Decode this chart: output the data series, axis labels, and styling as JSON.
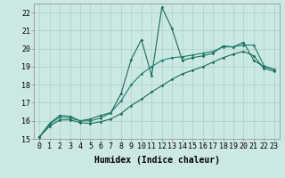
{
  "xlabel": "Humidex (Indice chaleur)",
  "xlim": [
    -0.5,
    23.5
  ],
  "ylim": [
    15,
    22.5
  ],
  "yticks": [
    15,
    16,
    17,
    18,
    19,
    20,
    21,
    22
  ],
  "xticks": [
    0,
    1,
    2,
    3,
    4,
    5,
    6,
    7,
    8,
    9,
    10,
    11,
    12,
    13,
    14,
    15,
    16,
    17,
    18,
    19,
    20,
    21,
    22,
    23
  ],
  "background_color": "#cce8e4",
  "grid_color": "#aacfca",
  "line_color_top": "#1a6b58",
  "line_color_mid": "#1a8068",
  "line_color_bot": "#1a6b58",
  "series_top": [
    15.1,
    15.85,
    16.3,
    16.25,
    16.0,
    16.1,
    16.3,
    16.45,
    17.5,
    19.4,
    20.5,
    18.5,
    22.3,
    21.1,
    19.35,
    19.5,
    19.6,
    19.75,
    20.15,
    20.1,
    20.35,
    19.35,
    19.0,
    18.85
  ],
  "series_mid": [
    15.1,
    15.8,
    16.2,
    16.15,
    16.0,
    16.0,
    16.15,
    16.45,
    17.1,
    18.0,
    18.6,
    19.0,
    19.35,
    19.5,
    19.55,
    19.65,
    19.75,
    19.85,
    20.1,
    20.1,
    20.2,
    20.2,
    19.05,
    18.85
  ],
  "series_bot": [
    15.1,
    15.7,
    16.05,
    16.05,
    15.9,
    15.85,
    15.95,
    16.1,
    16.4,
    16.85,
    17.2,
    17.6,
    17.95,
    18.3,
    18.6,
    18.8,
    19.0,
    19.25,
    19.5,
    19.7,
    19.85,
    19.6,
    18.9,
    18.75
  ],
  "xlabel_fontsize": 7,
  "tick_fontsize": 6
}
